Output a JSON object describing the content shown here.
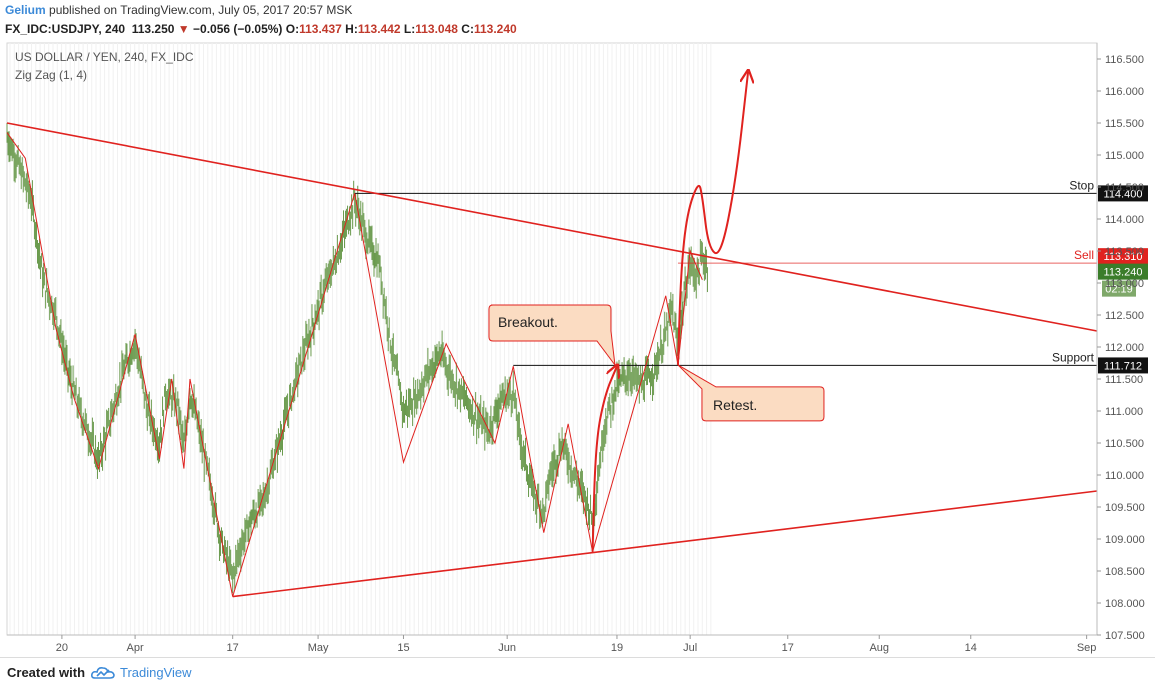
{
  "header": {
    "author": "Gelium",
    "published_text": "published on TradingView.com, July 05, 2017 20:57 MSK",
    "symbol_line": "FX_IDC:USDJPY, 240",
    "last_price": "113.250",
    "change_arrow": "▼",
    "change": "−0.056 (−0.05%)",
    "o_label": "O:",
    "o_value": "113.437",
    "h_label": "H:",
    "h_value": "113.442",
    "l_label": "L:",
    "l_value": "113.048",
    "c_label": "C:",
    "c_value": "113.240"
  },
  "footer": {
    "created_with": "Created with",
    "brand": "TradingView"
  },
  "colors": {
    "candles": "#6a9a4d",
    "trend": "#e0221f",
    "level": "#111111",
    "sell_badge": "#e0221f",
    "price_badge": "#3b7d2a",
    "timer_badge": "#7fa86a",
    "callout_fill": "#fbdcc2",
    "callout_border": "#e0221f"
  },
  "chart_data": {
    "type": "candlestick",
    "title": "US DOLLAR / YEN, 240, FX_IDC",
    "indicator": "Zig Zag (1, 4)",
    "ylim": [
      107.5,
      116.75
    ],
    "y_ticks": [
      "116.500",
      "116.000",
      "115.500",
      "115.000",
      "114.500",
      "114.000",
      "113.500",
      "113.000",
      "112.500",
      "112.000",
      "111.500",
      "111.000",
      "110.500",
      "110.000",
      "109.500",
      "109.000",
      "108.500",
      "108.000",
      "107.500"
    ],
    "x_ticks": [
      {
        "label": "20",
        "day": 0
      },
      {
        "label": "Apr",
        "day": 12
      },
      {
        "label": "17",
        "day": 28
      },
      {
        "label": "May",
        "day": 42
      },
      {
        "label": "15",
        "day": 56
      },
      {
        "label": "Jun",
        "day": 73
      },
      {
        "label": "19",
        "day": 91
      },
      {
        "label": "Jul",
        "day": 103
      },
      {
        "label": "17",
        "day": 119
      },
      {
        "label": "Aug",
        "day": 134
      },
      {
        "label": "14",
        "day": 149
      },
      {
        "label": "Sep",
        "day": 168
      }
    ],
    "x_domain_days": [
      -9,
      169.7
    ],
    "data_end_day": 106.5,
    "zigzag": [
      [
        -9,
        115.35
      ],
      [
        -6,
        114.95
      ],
      [
        -1,
        112.3
      ],
      [
        2,
        111.2
      ],
      [
        6,
        110.1
      ],
      [
        12,
        112.2
      ],
      [
        16,
        110.25
      ],
      [
        18,
        111.5
      ],
      [
        20,
        110.1
      ],
      [
        21,
        111.5
      ],
      [
        28,
        108.1
      ],
      [
        48,
        114.4
      ],
      [
        56,
        110.2
      ],
      [
        63,
        112.05
      ],
      [
        71,
        110.5
      ],
      [
        74,
        111.7
      ],
      [
        79,
        109.1
      ],
      [
        83,
        110.8
      ],
      [
        87,
        108.8
      ],
      [
        99,
        112.8
      ],
      [
        101,
        111.72
      ],
      [
        103,
        113.5
      ],
      [
        105,
        113.05
      ]
    ],
    "price_series": [
      [
        -9,
        115.3
      ],
      [
        -7,
        114.8
      ],
      [
        -5,
        114.3
      ],
      [
        -3,
        113.0
      ],
      [
        -1,
        112.5
      ],
      [
        1,
        111.6
      ],
      [
        3,
        111.0
      ],
      [
        5,
        110.5
      ],
      [
        6,
        110.2
      ],
      [
        8,
        110.9
      ],
      [
        10,
        111.6
      ],
      [
        12,
        112.1
      ],
      [
        14,
        111.0
      ],
      [
        16,
        110.5
      ],
      [
        17,
        111.3
      ],
      [
        19,
        111.1
      ],
      [
        20,
        110.4
      ],
      [
        21,
        111.3
      ],
      [
        22,
        110.9
      ],
      [
        24,
        110.0
      ],
      [
        26,
        109.0
      ],
      [
        28,
        108.4
      ],
      [
        29,
        108.8
      ],
      [
        31,
        109.3
      ],
      [
        33,
        109.6
      ],
      [
        35,
        110.3
      ],
      [
        37,
        111.0
      ],
      [
        39,
        111.7
      ],
      [
        41,
        112.3
      ],
      [
        43,
        112.9
      ],
      [
        45,
        113.4
      ],
      [
        47,
        114.0
      ],
      [
        48,
        114.3
      ],
      [
        50,
        113.7
      ],
      [
        52,
        113.3
      ],
      [
        54,
        112.0
      ],
      [
        56,
        111.0
      ],
      [
        58,
        111.2
      ],
      [
        60,
        111.6
      ],
      [
        62,
        111.9
      ],
      [
        64,
        111.5
      ],
      [
        66,
        111.2
      ],
      [
        68,
        110.9
      ],
      [
        70,
        110.7
      ],
      [
        72,
        111.2
      ],
      [
        74,
        111.3
      ],
      [
        75,
        110.6
      ],
      [
        77,
        109.8
      ],
      [
        79,
        109.4
      ],
      [
        80,
        110.0
      ],
      [
        82,
        110.5
      ],
      [
        84,
        110.0
      ],
      [
        86,
        109.6
      ],
      [
        87,
        109.3
      ],
      [
        89,
        110.8
      ],
      [
        91,
        111.4
      ],
      [
        93,
        111.6
      ],
      [
        95,
        111.4
      ],
      [
        97,
        111.6
      ],
      [
        99,
        112.2
      ],
      [
        100,
        112.6
      ],
      [
        101,
        112.0
      ],
      [
        102,
        112.8
      ],
      [
        103,
        113.3
      ],
      [
        104,
        113.1
      ],
      [
        105,
        113.4
      ],
      [
        106,
        113.24
      ]
    ],
    "levels": [
      {
        "name": "Stop",
        "value": 114.4,
        "badge": "114.400",
        "start_day": 48
      },
      {
        "name": "Support",
        "value": 111.712,
        "badge": "111.712",
        "start_day": 74
      }
    ],
    "sell": {
      "label": "Sell",
      "value": 113.31,
      "badge": "113.310",
      "start_day": 101
    },
    "last_price": {
      "value": 113.24,
      "badge": "113.240",
      "timer": "02:19"
    },
    "trendlines": [
      {
        "from": [
          -9,
          115.5
        ],
        "to": [
          169.7,
          112.25
        ]
      },
      {
        "from": [
          28,
          108.1
        ],
        "to": [
          169.7,
          109.75
        ]
      }
    ],
    "arrows": [
      {
        "name": "breakout-arrow",
        "points": [
          [
            87,
            108.8
          ],
          [
            87.5,
            110.5
          ],
          [
            89,
            111.25
          ],
          [
            91,
            111.7
          ]
        ]
      },
      {
        "name": "projection-arrow",
        "points": [
          [
            101,
            111.72
          ],
          [
            101.5,
            113.2
          ],
          [
            102.5,
            114.1
          ],
          [
            104.4,
            114.6
          ],
          [
            105,
            114.35
          ],
          [
            106,
            113.55
          ],
          [
            108,
            113.4
          ],
          [
            110.5,
            114.6
          ],
          [
            112.5,
            116.3
          ]
        ]
      }
    ],
    "annotations": [
      {
        "text": "Breakout.",
        "anchor_day": 91,
        "anchor_value": 111.75
      },
      {
        "text": "Retest.",
        "anchor_day": 101,
        "anchor_value": 111.72
      }
    ]
  }
}
